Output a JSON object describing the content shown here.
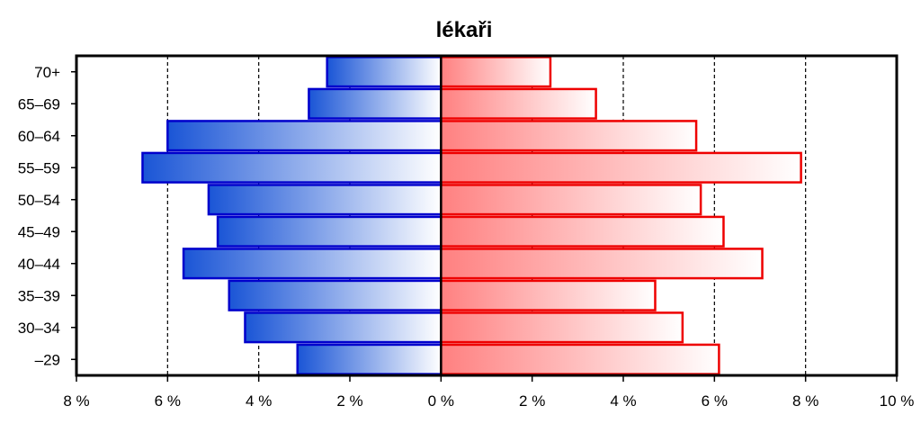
{
  "chart_data": {
    "type": "bar",
    "orientation": "horizontal-diverging",
    "title": "lékaři",
    "categories": [
      "70+",
      "65–69",
      "60–64",
      "55–59",
      "50–54",
      "45–49",
      "40–44",
      "35–39",
      "30–34",
      "–29"
    ],
    "series": [
      {
        "color": "#0000cc",
        "values": [
          2.5,
          2.9,
          6.0,
          6.55,
          5.1,
          4.9,
          5.65,
          4.65,
          4.3,
          3.15
        ]
      },
      {
        "color": "#ee0000",
        "values": [
          2.4,
          3.4,
          5.6,
          7.9,
          5.7,
          6.2,
          7.05,
          4.7,
          5.3,
          6.1
        ]
      }
    ],
    "xlim": [
      -8,
      10
    ],
    "xticks": [
      -8,
      -6,
      -4,
      -2,
      0,
      2,
      4,
      6,
      8,
      10
    ],
    "xtick_labels": [
      "8 %",
      "6 %",
      "4 %",
      "2 %",
      "0 %",
      "2 %",
      "4 %",
      "6 %",
      "8 %",
      "10 %"
    ],
    "grid": "vertical dashed",
    "legend": "none"
  }
}
